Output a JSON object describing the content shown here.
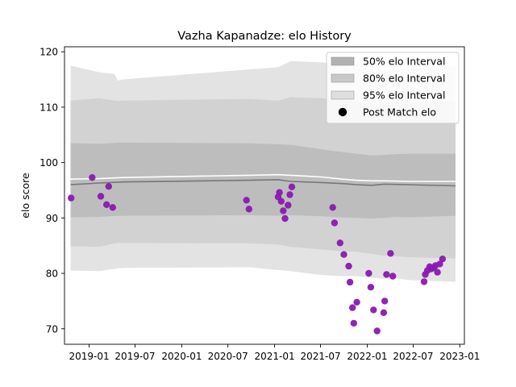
{
  "chart_data": {
    "type": "scatter",
    "title": "Vazha Kapanadze: elo History",
    "xlabel": "",
    "ylabel": "elo score",
    "x_is_date": true,
    "xlim": [
      "2018-09-26",
      "2023-01-19"
    ],
    "ylim": [
      67.2,
      120.9
    ],
    "x_ticks": [
      {
        "date": "2019-01-01",
        "label": "2019-01"
      },
      {
        "date": "2019-07-01",
        "label": "2019-07"
      },
      {
        "date": "2020-01-01",
        "label": "2020-01"
      },
      {
        "date": "2020-07-01",
        "label": "2020-07"
      },
      {
        "date": "2021-01-01",
        "label": "2021-01"
      },
      {
        "date": "2021-07-01",
        "label": "2021-07"
      },
      {
        "date": "2022-01-01",
        "label": "2022-01"
      },
      {
        "date": "2022-07-01",
        "label": "2022-07"
      },
      {
        "date": "2023-01-01",
        "label": "2023-01"
      }
    ],
    "y_ticks": [
      70,
      80,
      90,
      100,
      110,
      120
    ],
    "grid": false,
    "legend_position": "top-right",
    "legend": [
      {
        "label": "50% elo Interval",
        "kind": "patch",
        "color": "#b2b2b2"
      },
      {
        "label": "80% elo Interval",
        "kind": "patch",
        "color": "#c8c8c8"
      },
      {
        "label": "95% elo Interval",
        "kind": "patch",
        "color": "#dedede"
      },
      {
        "label": "Post Match elo",
        "kind": "marker",
        "color": "#000000"
      }
    ],
    "bands": [
      {
        "name": "95% elo Interval",
        "color": "#e3e3e3",
        "x": [
          "2018-10-20",
          "2019-02-10",
          "2019-04-10",
          "2019-04-25",
          "2019-05-15",
          "2020-09-20",
          "2021-01-15",
          "2021-03-05",
          "2021-07-05",
          "2021-09-25",
          "2021-11-20",
          "2022-01-20",
          "2022-03-10",
          "2022-04-20",
          "2022-06-15",
          "2022-12-15"
        ],
        "upper": [
          117.5,
          116.3,
          116.0,
          114.8,
          115.0,
          116.8,
          117.2,
          118.3,
          118.1,
          117.5,
          117.0,
          116.5,
          116.5,
          116.9,
          117.0,
          117.4
        ],
        "lower": [
          80.5,
          80.4,
          80.8,
          80.9,
          81.0,
          81.1,
          80.6,
          80.4,
          79.7,
          79.5,
          79.5,
          79.2,
          79.0,
          79.1,
          78.8,
          78.5
        ]
      },
      {
        "name": "80% elo Interval",
        "color": "#d2d2d2",
        "x": [
          "2018-10-20",
          "2019-02-10",
          "2019-04-25",
          "2019-05-15",
          "2020-09-20",
          "2021-01-15",
          "2021-03-05",
          "2021-07-05",
          "2021-09-25",
          "2021-11-20",
          "2022-01-20",
          "2022-03-10",
          "2022-04-20",
          "2022-06-15",
          "2022-12-15"
        ],
        "upper": [
          111.2,
          111.6,
          111.1,
          111.2,
          111.5,
          111.2,
          111.8,
          111.6,
          111.4,
          111.0,
          110.6,
          110.7,
          110.8,
          110.8,
          111.0
        ],
        "lower": [
          84.9,
          84.8,
          85.5,
          85.5,
          85.4,
          85.2,
          84.8,
          84.3,
          84.0,
          83.9,
          83.5,
          83.2,
          83.1,
          82.9,
          82.7
        ]
      },
      {
        "name": "50% elo Interval",
        "color": "#bdbdbd",
        "x": [
          "2018-10-20",
          "2019-02-10",
          "2019-04-25",
          "2019-05-15",
          "2020-09-20",
          "2021-01-15",
          "2021-03-05",
          "2021-07-05",
          "2021-09-25",
          "2021-11-20",
          "2022-01-20",
          "2022-03-10",
          "2022-04-20",
          "2022-06-15",
          "2022-12-15"
        ],
        "upper": [
          103.5,
          103.4,
          103.6,
          103.6,
          103.5,
          103.3,
          103.2,
          102.4,
          101.9,
          101.6,
          101.3,
          101.4,
          101.5,
          101.6,
          101.6
        ],
        "lower": [
          90.1,
          90.2,
          90.4,
          90.4,
          90.5,
          90.4,
          90.5,
          90.3,
          90.1,
          90.0,
          89.9,
          90.0,
          90.2,
          90.1,
          90.4
        ]
      }
    ],
    "lines": [
      {
        "name": "mean",
        "color": "#777777",
        "x": [
          "2018-10-20",
          "2019-02-10",
          "2019-05-15",
          "2020-09-20",
          "2021-01-15",
          "2021-03-05",
          "2021-07-05",
          "2021-09-25",
          "2021-11-20",
          "2022-01-20",
          "2022-03-10",
          "2022-06-15",
          "2022-12-15"
        ],
        "y": [
          96.0,
          96.3,
          96.5,
          96.8,
          96.9,
          96.6,
          96.4,
          96.2,
          96.0,
          95.9,
          96.1,
          96.0,
          95.8
        ]
      },
      {
        "name": "median",
        "color": "#ffffff",
        "x": [
          "2018-10-20",
          "2019-02-10",
          "2019-05-15",
          "2020-09-20",
          "2021-01-15",
          "2021-03-05",
          "2021-07-05",
          "2021-09-25",
          "2021-11-20",
          "2022-01-20",
          "2022-03-10",
          "2022-06-15",
          "2022-12-15"
        ],
        "y": [
          97.0,
          97.1,
          97.3,
          97.7,
          97.8,
          97.7,
          97.4,
          97.0,
          96.8,
          96.7,
          96.7,
          96.6,
          96.6
        ]
      }
    ],
    "series": [
      {
        "name": "Post Match elo",
        "color": "#8a19b0",
        "x": [
          "2018-10-22",
          "2019-01-13",
          "2019-02-16",
          "2019-03-11",
          "2019-03-19",
          "2019-04-04",
          "2020-09-12",
          "2020-09-22",
          "2021-01-15",
          "2021-01-20",
          "2021-01-27",
          "2021-02-04",
          "2021-02-11",
          "2021-02-23",
          "2021-03-02",
          "2021-03-10",
          "2021-08-18",
          "2021-08-25",
          "2021-09-16",
          "2021-10-01",
          "2021-10-20",
          "2021-10-25",
          "2021-11-04",
          "2021-11-09",
          "2021-11-21",
          "2022-01-07",
          "2022-01-15",
          "2022-01-26",
          "2022-02-09",
          "2022-03-07",
          "2022-03-11",
          "2022-03-18",
          "2022-04-03",
          "2022-04-12",
          "2022-08-13",
          "2022-08-18",
          "2022-08-26",
          "2022-09-04",
          "2022-09-10",
          "2022-09-20",
          "2022-09-27",
          "2022-10-05",
          "2022-10-14",
          "2022-10-25"
        ],
        "y": [
          93.6,
          97.3,
          93.9,
          92.4,
          95.7,
          91.9,
          93.2,
          91.6,
          93.8,
          94.6,
          93.0,
          91.3,
          89.9,
          92.3,
          94.2,
          95.6,
          91.9,
          89.1,
          85.5,
          83.4,
          81.3,
          78.4,
          73.8,
          71.0,
          74.8,
          80.0,
          77.5,
          73.4,
          69.6,
          72.9,
          75.0,
          79.8,
          83.6,
          79.5,
          78.5,
          79.8,
          80.5,
          81.2,
          80.8,
          81.0,
          81.4,
          80.2,
          81.7,
          82.6
        ]
      }
    ]
  }
}
